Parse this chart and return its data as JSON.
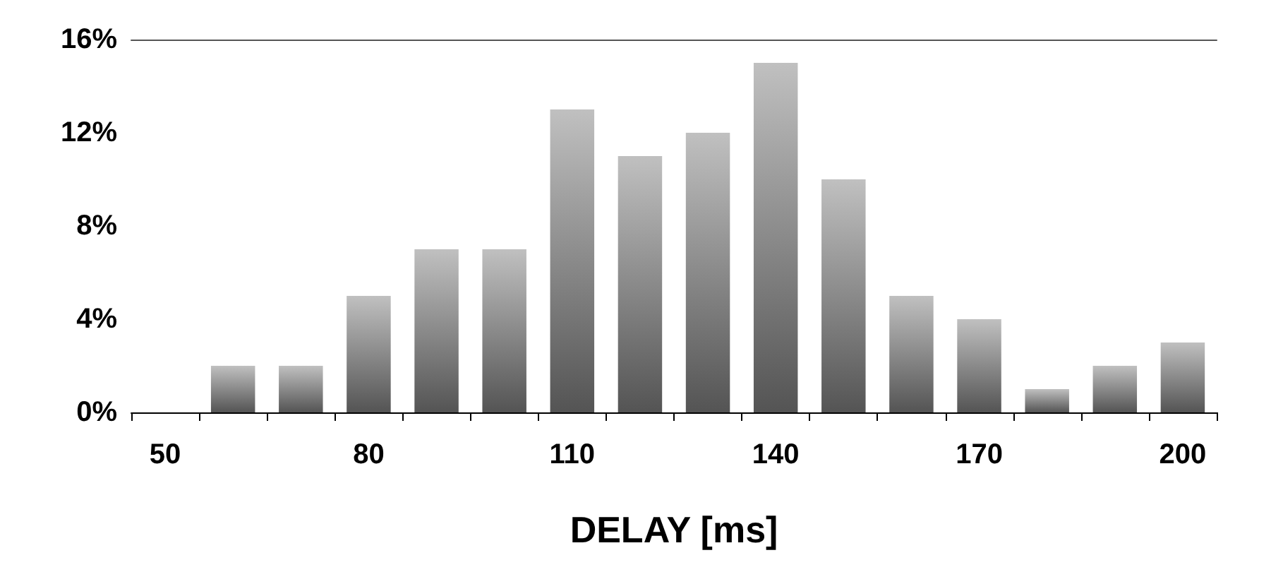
{
  "chart_data": {
    "type": "bar",
    "xlabel": "DELAY [ms]",
    "categories": [
      "50",
      null,
      null,
      "80",
      null,
      null,
      "110",
      null,
      null,
      "140",
      null,
      null,
      "170",
      null,
      null,
      "200"
    ],
    "values": [
      null,
      2,
      2,
      5,
      7,
      7,
      13,
      11,
      12,
      15,
      10,
      5,
      4,
      1,
      2,
      3
    ],
    "color": "#8c8c8c",
    "ylim": [
      0,
      16
    ],
    "yticks": [
      {
        "value": 0,
        "label": "0%"
      },
      {
        "value": 4,
        "label": "4%"
      },
      {
        "value": 8,
        "label": "8%"
      },
      {
        "value": 12,
        "label": "12%"
      },
      {
        "value": 16,
        "label": "16%"
      }
    ],
    "grid": false
  }
}
